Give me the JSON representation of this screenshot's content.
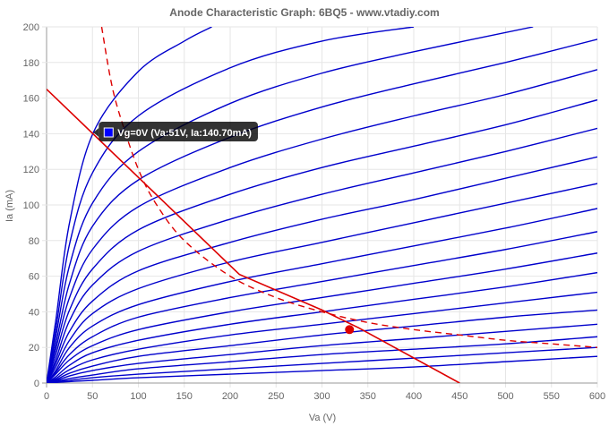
{
  "chart_data": {
    "type": "line",
    "title": "Anode Characteristic Graph: 6BQ5 - www.vtadiy.com",
    "xlabel": "Va (V)",
    "ylabel": "Ia (mA)",
    "xlim": [
      0,
      600
    ],
    "ylim": [
      0,
      200
    ],
    "x_ticks": [
      0,
      50,
      100,
      150,
      200,
      250,
      300,
      350,
      400,
      450,
      500,
      550,
      600
    ],
    "y_ticks": [
      0,
      20,
      40,
      60,
      80,
      100,
      120,
      140,
      160,
      180,
      200
    ],
    "grid": true,
    "colors": {
      "curves": "#0000cc",
      "load_line": "#dd0000",
      "dissipation": "#dd0000",
      "grid": "#e6e6e6",
      "axis": "#999999"
    },
    "series": [
      {
        "values": [
          [
            0,
            0
          ],
          [
            10,
            35
          ],
          [
            25,
            90
          ],
          [
            51,
            140.7
          ],
          [
            100,
            175
          ],
          [
            150,
            192
          ],
          [
            180,
            200
          ]
        ]
      },
      {
        "values": [
          [
            0,
            0
          ],
          [
            10,
            30
          ],
          [
            25,
            78
          ],
          [
            50,
            118
          ],
          [
            100,
            150
          ],
          [
            200,
            177
          ],
          [
            300,
            192
          ],
          [
            400,
            200
          ]
        ]
      },
      {
        "values": [
          [
            0,
            0
          ],
          [
            10,
            26
          ],
          [
            25,
            66
          ],
          [
            50,
            101
          ],
          [
            100,
            130
          ],
          [
            200,
            157
          ],
          [
            300,
            174
          ],
          [
            400,
            186
          ],
          [
            530,
            200
          ]
        ]
      },
      {
        "values": [
          [
            0,
            0
          ],
          [
            10,
            22
          ],
          [
            25,
            56
          ],
          [
            50,
            88
          ],
          [
            100,
            114
          ],
          [
            200,
            138
          ],
          [
            300,
            155
          ],
          [
            400,
            168
          ],
          [
            500,
            180
          ],
          [
            600,
            193
          ]
        ]
      },
      {
        "values": [
          [
            0,
            0
          ],
          [
            10,
            19
          ],
          [
            25,
            48
          ],
          [
            50,
            75
          ],
          [
            100,
            99
          ],
          [
            200,
            121
          ],
          [
            300,
            137
          ],
          [
            400,
            150
          ],
          [
            500,
            162
          ],
          [
            600,
            176
          ]
        ]
      },
      {
        "values": [
          [
            0,
            0
          ],
          [
            10,
            16
          ],
          [
            25,
            41
          ],
          [
            50,
            64
          ],
          [
            100,
            86
          ],
          [
            200,
            106
          ],
          [
            300,
            121
          ],
          [
            400,
            133
          ],
          [
            500,
            145
          ],
          [
            600,
            159
          ]
        ]
      },
      {
        "values": [
          [
            0,
            0
          ],
          [
            10,
            13
          ],
          [
            25,
            35
          ],
          [
            50,
            55
          ],
          [
            100,
            74
          ],
          [
            200,
            92
          ],
          [
            300,
            106
          ],
          [
            400,
            118
          ],
          [
            500,
            130
          ],
          [
            600,
            143
          ]
        ]
      },
      {
        "values": [
          [
            0,
            0
          ],
          [
            10,
            11
          ],
          [
            25,
            29
          ],
          [
            50,
            46
          ],
          [
            100,
            63
          ],
          [
            200,
            79
          ],
          [
            300,
            92
          ],
          [
            400,
            103
          ],
          [
            500,
            115
          ],
          [
            600,
            127
          ]
        ]
      },
      {
        "values": [
          [
            0,
            0
          ],
          [
            10,
            9
          ],
          [
            25,
            24
          ],
          [
            50,
            39
          ],
          [
            100,
            53
          ],
          [
            200,
            68
          ],
          [
            300,
            79
          ],
          [
            400,
            90
          ],
          [
            500,
            101
          ],
          [
            600,
            112
          ]
        ]
      },
      {
        "values": [
          [
            0,
            0
          ],
          [
            10,
            7
          ],
          [
            25,
            20
          ],
          [
            50,
            32
          ],
          [
            100,
            44
          ],
          [
            200,
            57
          ],
          [
            300,
            67
          ],
          [
            400,
            77
          ],
          [
            500,
            87
          ],
          [
            600,
            98
          ]
        ]
      },
      {
        "values": [
          [
            0,
            0
          ],
          [
            10,
            6
          ],
          [
            25,
            16
          ],
          [
            50,
            26
          ],
          [
            100,
            37
          ],
          [
            200,
            48
          ],
          [
            300,
            57
          ],
          [
            400,
            66
          ],
          [
            500,
            75
          ],
          [
            600,
            85
          ]
        ]
      },
      {
        "values": [
          [
            0,
            0
          ],
          [
            10,
            5
          ],
          [
            25,
            13
          ],
          [
            50,
            21
          ],
          [
            100,
            30
          ],
          [
            200,
            40
          ],
          [
            300,
            48
          ],
          [
            400,
            56
          ],
          [
            500,
            64
          ],
          [
            600,
            73
          ]
        ]
      },
      {
        "values": [
          [
            0,
            0
          ],
          [
            10,
            3.5
          ],
          [
            25,
            10
          ],
          [
            50,
            17
          ],
          [
            100,
            24
          ],
          [
            200,
            33
          ],
          [
            300,
            40
          ],
          [
            400,
            47
          ],
          [
            500,
            54
          ],
          [
            600,
            62
          ]
        ]
      },
      {
        "values": [
          [
            0,
            0
          ],
          [
            10,
            2.5
          ],
          [
            25,
            7.5
          ],
          [
            50,
            13
          ],
          [
            100,
            19
          ],
          [
            200,
            27
          ],
          [
            300,
            33
          ],
          [
            400,
            39
          ],
          [
            500,
            45
          ],
          [
            600,
            51
          ]
        ]
      },
      {
        "values": [
          [
            0,
            0
          ],
          [
            10,
            1.8
          ],
          [
            25,
            5.5
          ],
          [
            50,
            9.5
          ],
          [
            100,
            15
          ],
          [
            200,
            21
          ],
          [
            300,
            27
          ],
          [
            400,
            32
          ],
          [
            500,
            37
          ],
          [
            600,
            41
          ]
        ]
      },
      {
        "values": [
          [
            0,
            0
          ],
          [
            10,
            1.2
          ],
          [
            25,
            4
          ],
          [
            50,
            7
          ],
          [
            100,
            11
          ],
          [
            200,
            16
          ],
          [
            300,
            21
          ],
          [
            400,
            25
          ],
          [
            500,
            29
          ],
          [
            600,
            33
          ]
        ]
      },
      {
        "values": [
          [
            0,
            0
          ],
          [
            10,
            0.8
          ],
          [
            25,
            2.5
          ],
          [
            50,
            4.5
          ],
          [
            100,
            8
          ],
          [
            200,
            12
          ],
          [
            300,
            16
          ],
          [
            400,
            19
          ],
          [
            500,
            22
          ],
          [
            600,
            26
          ]
        ]
      },
      {
        "values": [
          [
            0,
            0
          ],
          [
            25,
            1.5
          ],
          [
            50,
            3
          ],
          [
            100,
            5
          ],
          [
            200,
            8
          ],
          [
            300,
            11
          ],
          [
            400,
            14
          ],
          [
            500,
            17
          ],
          [
            600,
            20
          ]
        ]
      },
      {
        "values": [
          [
            0,
            0
          ],
          [
            25,
            0.8
          ],
          [
            50,
            1.5
          ],
          [
            100,
            3
          ],
          [
            200,
            5
          ],
          [
            300,
            7
          ],
          [
            400,
            9
          ],
          [
            500,
            12
          ],
          [
            600,
            15
          ]
        ]
      }
    ],
    "load_line": [
      [
        0,
        165
      ],
      [
        210,
        61
      ],
      [
        300,
        41
      ],
      [
        340,
        31
      ],
      [
        450,
        0
      ]
    ],
    "dissipation_curve": [
      [
        60,
        200
      ],
      [
        70,
        170
      ],
      [
        80,
        150
      ],
      [
        100,
        120
      ],
      [
        120,
        100
      ],
      [
        150,
        80
      ],
      [
        200,
        60
      ],
      [
        250,
        48
      ],
      [
        300,
        40
      ],
      [
        350,
        34
      ],
      [
        400,
        30
      ],
      [
        450,
        27
      ],
      [
        500,
        24
      ],
      [
        550,
        22
      ],
      [
        600,
        20
      ]
    ],
    "operating_point": [
      330,
      30
    ],
    "tooltip": {
      "label": "Vg=0V (Va:51V, Ia:140.70mA)",
      "x": 51,
      "y": 140.7,
      "swatch_color": "#0000ff"
    }
  }
}
